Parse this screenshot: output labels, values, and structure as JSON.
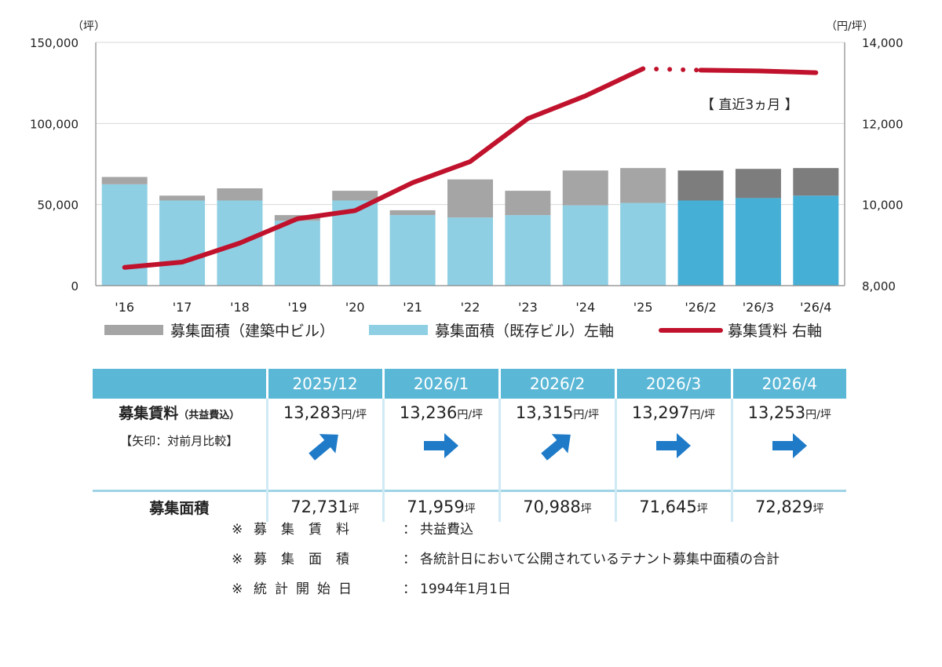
{
  "chart_data": {
    "type": "bar",
    "left_axis_unit": "（坪）",
    "right_axis_unit": "（円/坪）",
    "categories": [
      "'16",
      "'17",
      "'18",
      "'19",
      "'20",
      "'21",
      "'22",
      "'23",
      "'24",
      "'25",
      "'26/2",
      "'26/3",
      "'26/4"
    ],
    "left_ylim": [
      0,
      150000
    ],
    "left_ticks": [
      "0",
      "50,000",
      "100,000",
      "150,000"
    ],
    "right_ylim": [
      8000,
      14000
    ],
    "right_ticks": [
      "8,000",
      "10,000",
      "12,000",
      "14,000"
    ],
    "series": [
      {
        "name": "募集面積（既存ビル）左軸",
        "type": "bar",
        "color": "#8ecfe4",
        "recent_color": "#45afd6",
        "values": [
          62500,
          52500,
          52500,
          40000,
          52500,
          43500,
          42000,
          43500,
          49500,
          51000,
          52500,
          54000,
          55500
        ]
      },
      {
        "name": "募集面積（建築中ビル）",
        "type": "bar",
        "color": "#a5a5a5",
        "recent_color": "#7d7d7d",
        "values": [
          4500,
          3000,
          7500,
          3500,
          6000,
          3000,
          23500,
          15000,
          21500,
          21500,
          18500,
          18000,
          17000
        ]
      },
      {
        "name": "募集賃料 右軸",
        "type": "line",
        "color": "#c0122c",
        "values": [
          8450,
          8580,
          9050,
          9650,
          9850,
          10540,
          11060,
          12120,
          12680,
          13350,
          13315,
          13297,
          13253
        ]
      }
    ],
    "legend_position": "bottom",
    "gridlines": true,
    "annotation": "【 直近3ヵ月 】"
  },
  "table": {
    "headers": [
      "2025/12",
      "2026/1",
      "2026/2",
      "2026/3",
      "2026/4"
    ],
    "rent_label": "募集賃料",
    "rent_label_sub": "（共益費込）",
    "arrow_note": "【矢印：対前月比較】",
    "rent_unit": "円/坪",
    "rent": [
      {
        "value": "13,283",
        "trend": "up"
      },
      {
        "value": "13,236",
        "trend": "flat"
      },
      {
        "value": "13,315",
        "trend": "up"
      },
      {
        "value": "13,297",
        "trend": "flat"
      },
      {
        "value": "13,253",
        "trend": "flat"
      }
    ],
    "area_label": "募集面積",
    "area_unit": "坪",
    "area": [
      "72,731",
      "71,959",
      "70,988",
      "71,645",
      "72,829"
    ],
    "arrow_color": "#1f7bc8"
  },
  "notes": [
    {
      "mark": "※",
      "key": "募集賃料",
      "sep": "：",
      "text": "共益費込"
    },
    {
      "mark": "※",
      "key": "募集面積",
      "sep": "：",
      "text": "各統計日において公開されているテナント募集中面積の合計"
    },
    {
      "mark": "※",
      "key": "統計開始日",
      "sep": "：",
      "text": "1994年1月1日"
    }
  ]
}
